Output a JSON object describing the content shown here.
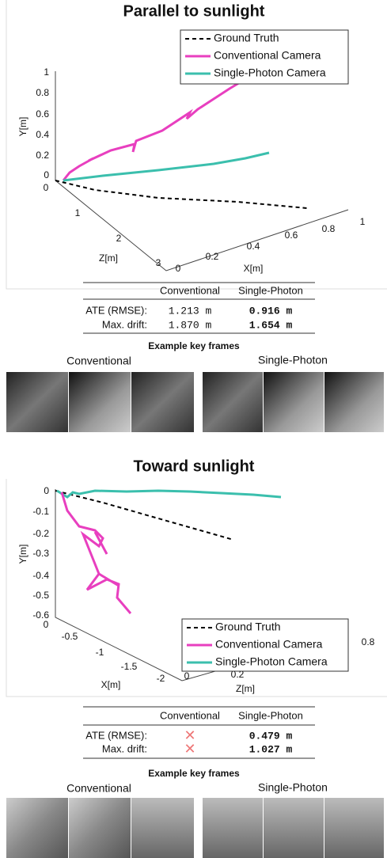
{
  "panels": [
    {
      "title": "Parallel to sunlight",
      "plot": {
        "y_axis": {
          "label": "Y[m]",
          "ticks": [
            "1",
            "0.8",
            "0.6",
            "0.4",
            "0.2",
            "0"
          ]
        },
        "z_axis": {
          "label": "Z[m]",
          "ticks": [
            "0",
            "1",
            "2",
            "3"
          ]
        },
        "x_axis": {
          "label": "X[m]",
          "ticks": [
            "0",
            "0.2",
            "0.4",
            "0.6",
            "0.8",
            "1"
          ]
        },
        "legend": [
          "Ground Truth",
          "Conventional Camera",
          "Single-Photon Camera"
        ]
      },
      "table": {
        "columns": [
          "Conventional",
          "Single-Photon"
        ],
        "rows": [
          {
            "label": "ATE (RMSE):",
            "conventional": "1.213 m",
            "single_photon": "0.916 m"
          },
          {
            "label": "Max. drift:",
            "conventional": "1.870 m",
            "single_photon": "1.654 m"
          }
        ]
      },
      "key_frames": {
        "title": "Example key frames",
        "groups": [
          "Conventional",
          "Single-Photon"
        ]
      }
    },
    {
      "title": "Toward sunlight",
      "plot": {
        "y_axis": {
          "label": "Y[m]",
          "ticks": [
            "0",
            "-0.1",
            "-0.2",
            "-0.3",
            "-0.4",
            "-0.5",
            "-0.6"
          ]
        },
        "z_axis": {
          "label": "X[m]",
          "ticks": [
            "0",
            "-0.5",
            "-1",
            "-1.5",
            "-2"
          ]
        },
        "x_axis": {
          "label": "Z[m]",
          "ticks": [
            "0",
            "0.2",
            "0.8"
          ]
        },
        "legend": [
          "Ground Truth",
          "Conventional Camera",
          "Single-Photon Camera"
        ]
      },
      "table": {
        "columns": [
          "Conventional",
          "Single-Photon"
        ],
        "rows": [
          {
            "label": "ATE (RMSE):",
            "conventional": "✕",
            "single_photon": "0.479 m"
          },
          {
            "label": "Max. drift:",
            "conventional": "✕",
            "single_photon": "1.027 m"
          }
        ]
      },
      "key_frames": {
        "title": "Example key frames",
        "groups": [
          "Conventional",
          "Single-Photon"
        ]
      }
    }
  ]
}
